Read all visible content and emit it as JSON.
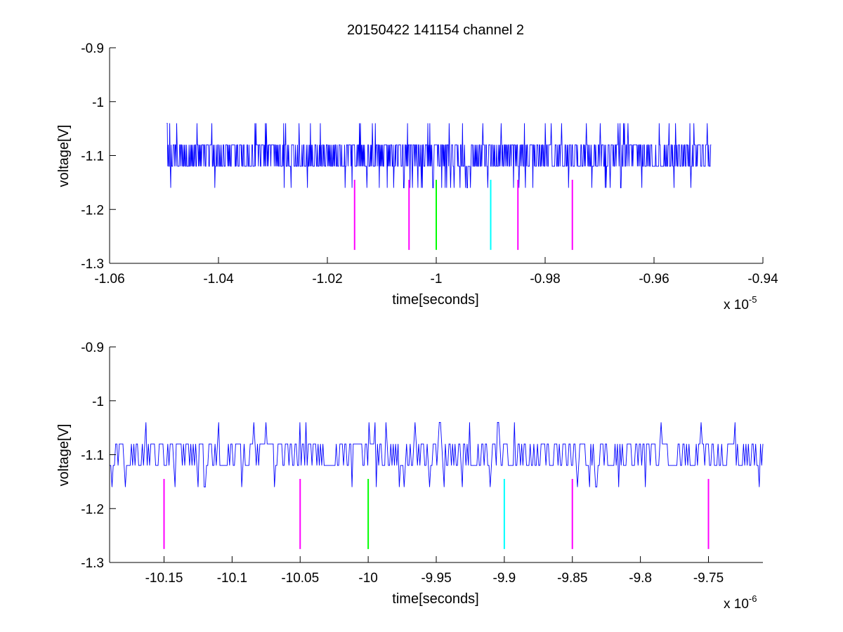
{
  "figure": {
    "title": "20150422 141154 channel 2"
  },
  "chart_data": [
    {
      "type": "line",
      "xlabel": "time[seconds]",
      "ylabel": "voltage[V]",
      "x_exponent_label": {
        "base": "x 10",
        "exponent": "-5"
      },
      "xlim": [
        -1.06,
        -0.94
      ],
      "ylim": [
        -1.3,
        -0.9
      ],
      "xticks": [
        -1.06,
        -1.04,
        -1.02,
        -1,
        -0.98,
        -0.96,
        -0.94
      ],
      "xtick_labels": [
        "-1.06",
        "-1.04",
        "-1.02",
        "-1",
        "-0.98",
        "-0.96",
        "-0.94"
      ],
      "yticks": [
        -0.9,
        -1,
        -1.1,
        -1.2,
        -1.3
      ],
      "ytick_labels": [
        "-0.9",
        "-1",
        "-1.1",
        "-1.2",
        "-1.3"
      ],
      "grid": false,
      "series": [
        {
          "color": "#0000ff",
          "kind": "noisy-signal",
          "x_range": [
            -1.0495,
            -0.9495
          ],
          "levels": [
            -1.08,
            -1.12
          ],
          "occasional_levels": [
            -1.04,
            -1.16
          ],
          "samples": 1100
        }
      ],
      "markers": [
        {
          "x": -1.015,
          "y_top": -1.145,
          "y_bottom": -1.275,
          "color": "#ff00ff"
        },
        {
          "x": -1.005,
          "y_top": -1.145,
          "y_bottom": -1.275,
          "color": "#ff00ff"
        },
        {
          "x": -1.0,
          "y_top": -1.145,
          "y_bottom": -1.275,
          "color": "#00ff00"
        },
        {
          "x": -0.99,
          "y_top": -1.145,
          "y_bottom": -1.275,
          "color": "#00ffff"
        },
        {
          "x": -0.985,
          "y_top": -1.145,
          "y_bottom": -1.275,
          "color": "#ff00ff"
        },
        {
          "x": -0.975,
          "y_top": -1.145,
          "y_bottom": -1.275,
          "color": "#ff00ff"
        }
      ]
    },
    {
      "type": "line",
      "xlabel": "time[seconds]",
      "ylabel": "voltage[V]",
      "x_exponent_label": {
        "base": "x 10",
        "exponent": "-6"
      },
      "xlim": [
        -10.19,
        -9.71
      ],
      "ylim": [
        -1.3,
        -0.9
      ],
      "xticks": [
        -10.15,
        -10.1,
        -10.05,
        -10,
        -9.95,
        -9.9,
        -9.85,
        -9.8,
        -9.75
      ],
      "xtick_labels": [
        "-10.15",
        "-10.1",
        "-10.05",
        "-10",
        "-9.95",
        "-9.9",
        "-9.85",
        "-9.8",
        "-9.75"
      ],
      "yticks": [
        -0.9,
        -1,
        -1.1,
        -1.2,
        -1.3
      ],
      "ytick_labels": [
        "-0.9",
        "-1",
        "-1.1",
        "-1.2",
        "-1.3"
      ],
      "grid": false,
      "series": [
        {
          "color": "#0000ff",
          "kind": "noisy-signal",
          "x_range": [
            -10.19,
            -9.71
          ],
          "levels": [
            -1.08,
            -1.12
          ],
          "occasional_levels": [
            -1.04,
            -1.16
          ],
          "samples": 540
        }
      ],
      "markers": [
        {
          "x": -10.15,
          "y_top": -1.145,
          "y_bottom": -1.275,
          "color": "#ff00ff"
        },
        {
          "x": -10.05,
          "y_top": -1.145,
          "y_bottom": -1.275,
          "color": "#ff00ff"
        },
        {
          "x": -10.0,
          "y_top": -1.145,
          "y_bottom": -1.275,
          "color": "#00ff00"
        },
        {
          "x": -9.9,
          "y_top": -1.145,
          "y_bottom": -1.275,
          "color": "#00ffff"
        },
        {
          "x": -9.85,
          "y_top": -1.145,
          "y_bottom": -1.275,
          "color": "#ff00ff"
        },
        {
          "x": -9.75,
          "y_top": -1.145,
          "y_bottom": -1.275,
          "color": "#ff00ff"
        }
      ]
    }
  ]
}
